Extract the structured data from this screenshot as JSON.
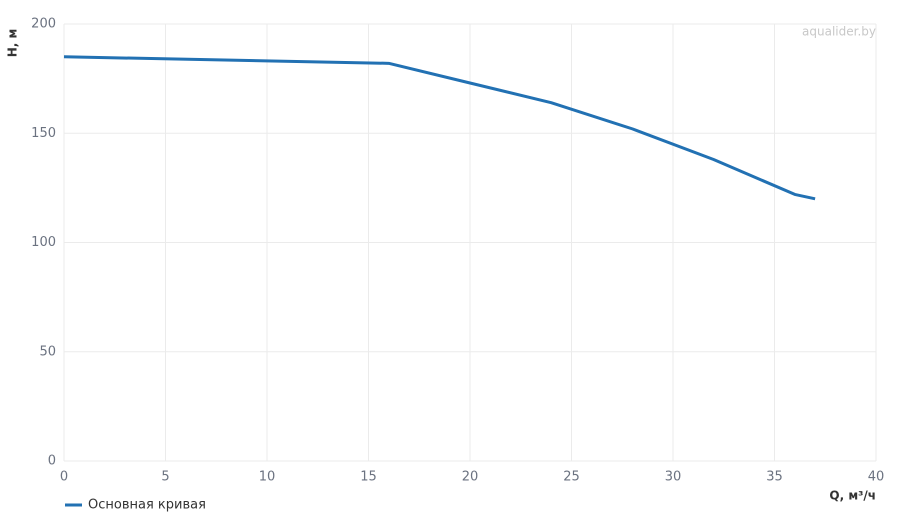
{
  "chart_data": {
    "type": "line",
    "watermark": "aqualider.by",
    "x_label": "Q, м³/ч",
    "y_label": "H, м",
    "x": [
      0,
      16,
      20,
      24,
      28,
      32,
      36,
      37
    ],
    "series": [
      {
        "name": "Основная кривая",
        "color": "#2271b3",
        "values": [
          185,
          182,
          173,
          164,
          152,
          138,
          122,
          120
        ]
      }
    ],
    "xlim": [
      0,
      40
    ],
    "xticks": [
      0,
      5,
      10,
      15,
      20,
      25,
      30,
      35,
      40
    ],
    "ylim": [
      0,
      200
    ],
    "yticks": [
      0,
      50,
      100,
      150,
      200
    ],
    "grid": true,
    "legend": "bottom-left"
  }
}
